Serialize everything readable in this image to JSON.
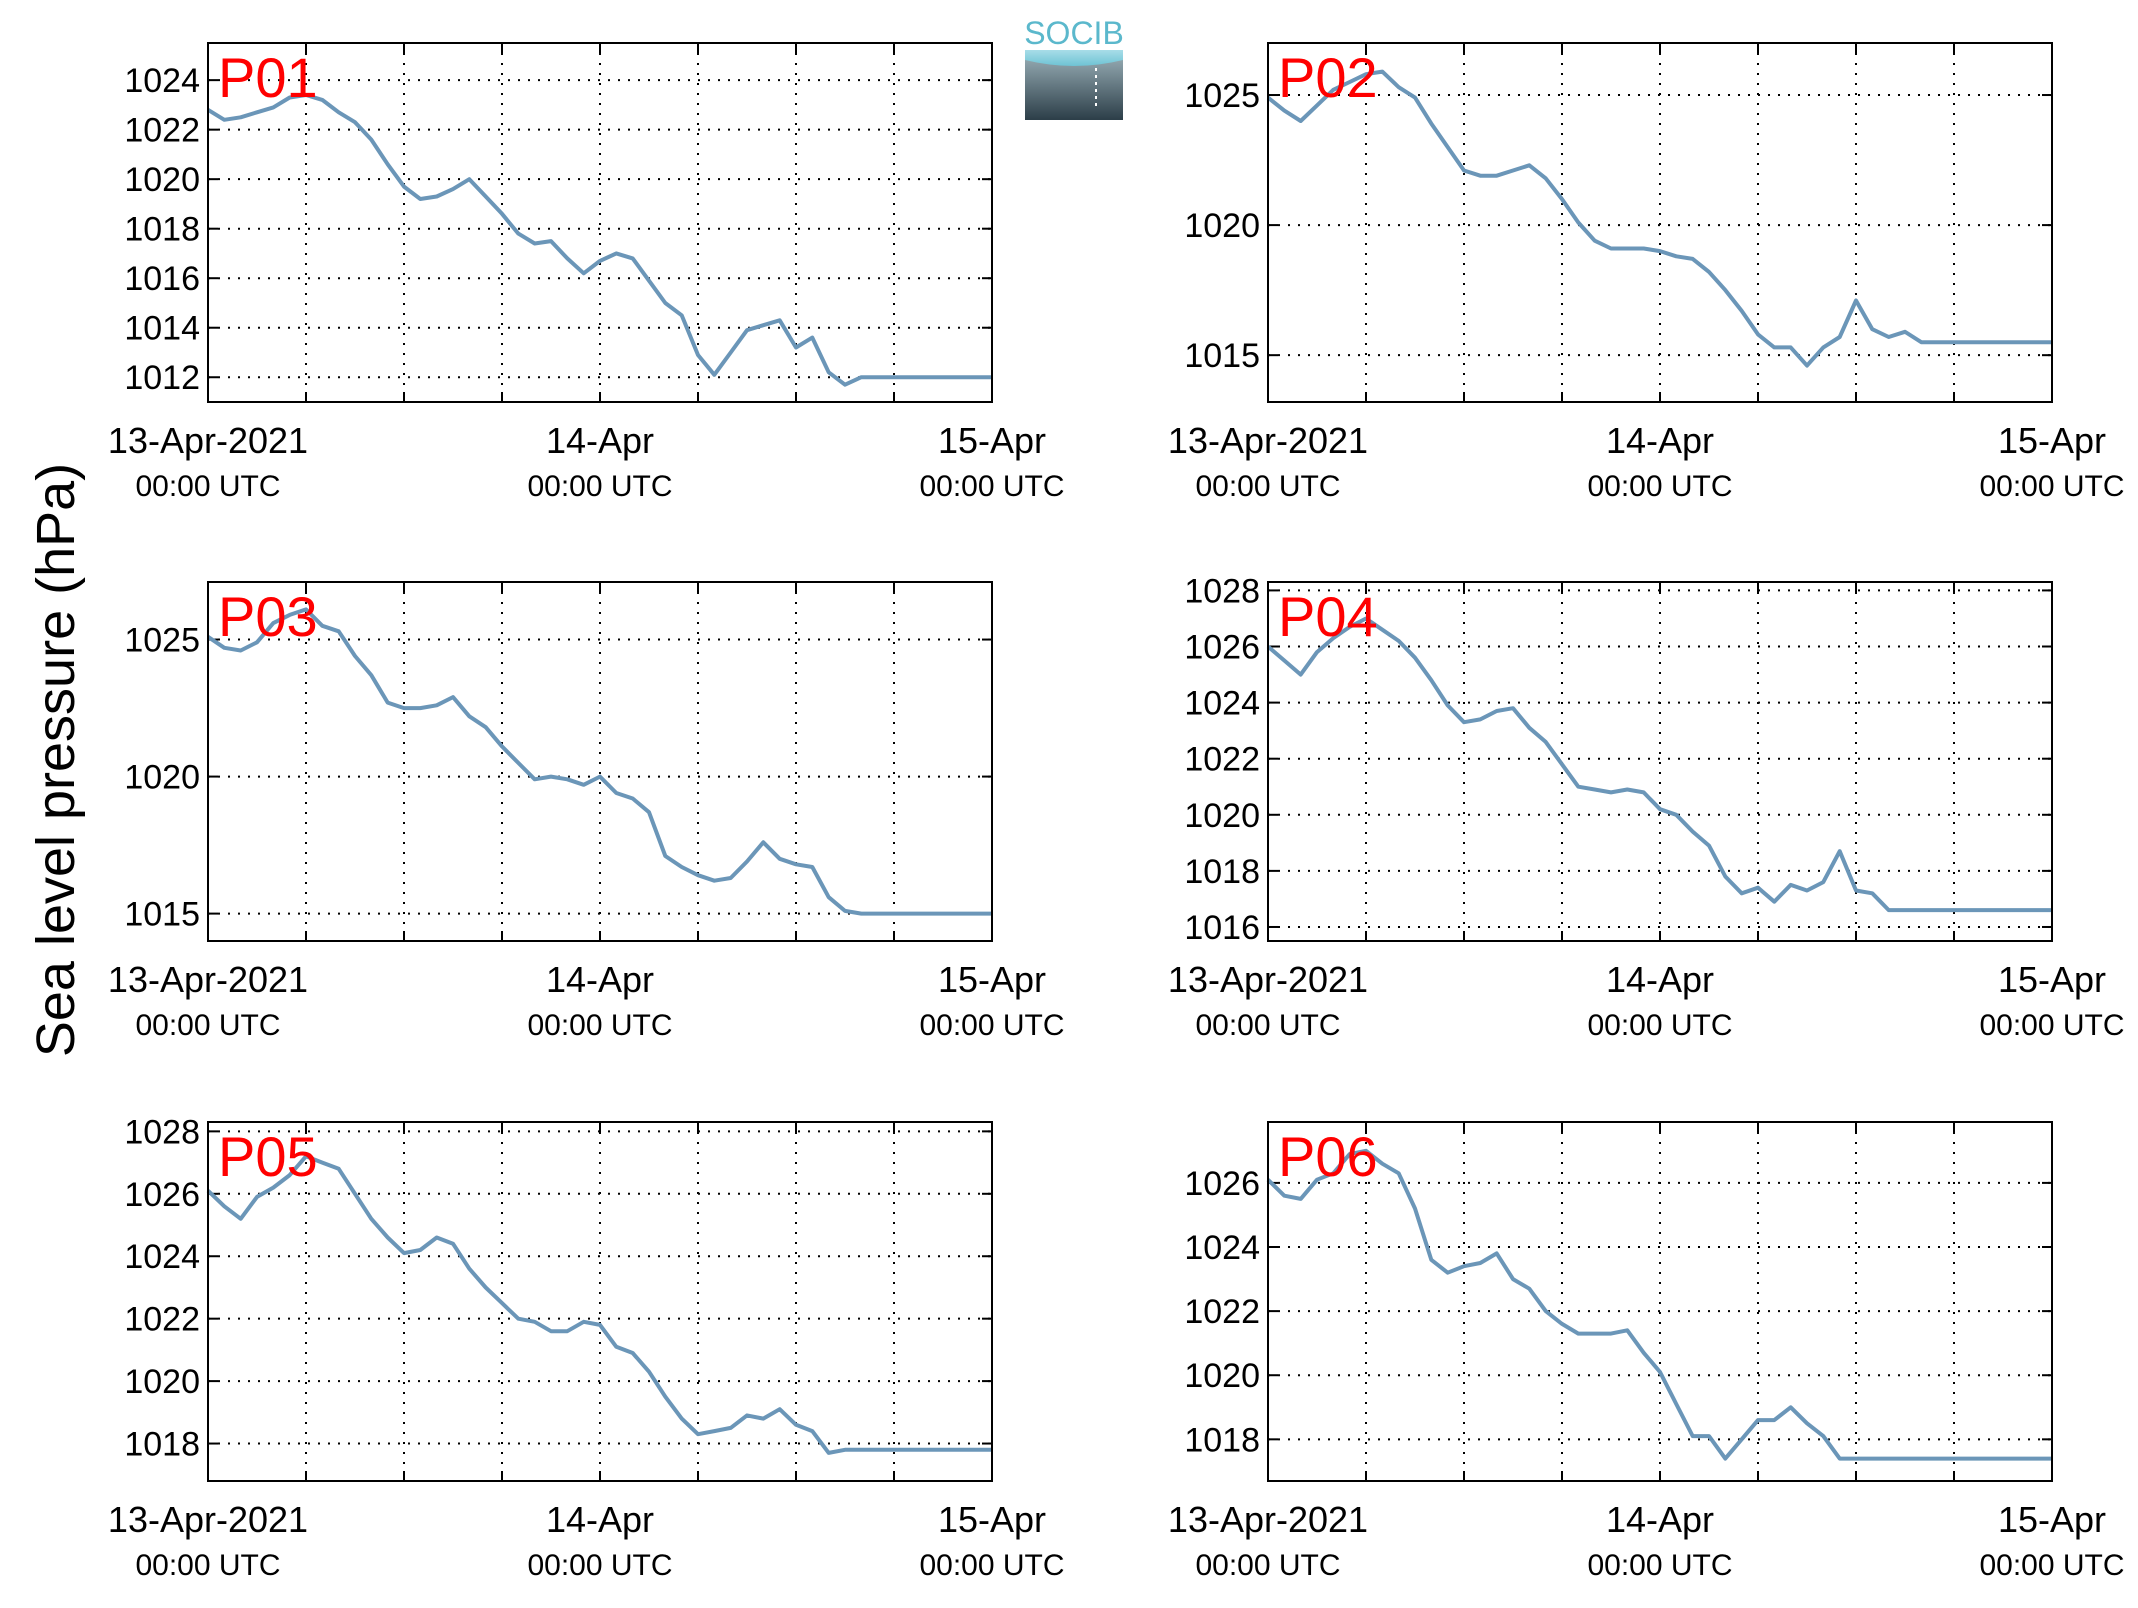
{
  "figure": {
    "ylabel": "Sea level pressure (hPa)",
    "logo": {
      "text": "SOCIB",
      "colors": {
        "text": "#5bb8cc",
        "top": "#8ec9d6",
        "bottom": "#2c3e48"
      }
    },
    "line_color": "#6b96b8",
    "station_label_color": "#ff0000"
  },
  "chart_data": [
    {
      "type": "line",
      "title": "P01",
      "x_range_hours": [
        0,
        48
      ],
      "ylim": [
        1011,
        1025.5
      ],
      "yticks": [
        1012,
        1014,
        1016,
        1018,
        1020,
        1022,
        1024
      ],
      "xticks": [
        {
          "line1": "13-Apr-2021",
          "line2": "00:00 UTC"
        },
        {
          "line1": "14-Apr",
          "line2": "00:00 UTC"
        },
        {
          "line1": "15-Apr",
          "line2": "00:00 UTC"
        }
      ],
      "series": [
        {
          "x": [
            0,
            1,
            2,
            3,
            4,
            5,
            6,
            7,
            8,
            9,
            10,
            11,
            12,
            13,
            14,
            15,
            16,
            17,
            18,
            19,
            20,
            21,
            22,
            23,
            24,
            25,
            26,
            27,
            28,
            29,
            30,
            31,
            32,
            33,
            34,
            35,
            36,
            37,
            38,
            39,
            40,
            41,
            42,
            43,
            44,
            45,
            46,
            47,
            48
          ],
          "values": [
            1022.8,
            1022.4,
            1022.5,
            1022.7,
            1022.9,
            1023.3,
            1023.4,
            1023.2,
            1022.7,
            1022.3,
            1021.6,
            1020.6,
            1019.7,
            1019.2,
            1019.3,
            1019.6,
            1020.0,
            1019.3,
            1018.6,
            1017.8,
            1017.4,
            1017.5,
            1016.8,
            1016.2,
            1016.7,
            1017.0,
            1016.8,
            1015.9,
            1015.0,
            1014.5,
            1012.9,
            1012.1,
            1013.0,
            1013.9,
            1014.1,
            1014.3,
            1013.2,
            1013.6,
            1012.2,
            1011.7,
            1012.0,
            1012.0,
            1012.0,
            1012.0,
            1012.0,
            1012.0,
            1012.0,
            1012.0,
            1012.0
          ]
        }
      ]
    },
    {
      "type": "line",
      "title": "P02",
      "x_range_hours": [
        0,
        48
      ],
      "ylim": [
        1013.2,
        1027.0
      ],
      "yticks": [
        1015,
        1020,
        1025
      ],
      "xticks": [
        {
          "line1": "13-Apr-2021",
          "line2": "00:00 UTC"
        },
        {
          "line1": "14-Apr",
          "line2": "00:00 UTC"
        },
        {
          "line1": "15-Apr",
          "line2": "00:00 UTC"
        }
      ],
      "series": [
        {
          "x": [
            0,
            1,
            2,
            3,
            4,
            5,
            6,
            7,
            8,
            9,
            10,
            11,
            12,
            13,
            14,
            15,
            16,
            17,
            18,
            19,
            20,
            21,
            22,
            23,
            24,
            25,
            26,
            27,
            28,
            29,
            30,
            31,
            32,
            33,
            34,
            35,
            36,
            37,
            38,
            39,
            40,
            41,
            42,
            43,
            44,
            45,
            46,
            47,
            48
          ],
          "values": [
            1024.9,
            1024.4,
            1024.0,
            1024.6,
            1025.2,
            1025.5,
            1025.8,
            1025.9,
            1025.3,
            1024.9,
            1023.9,
            1023.0,
            1022.1,
            1021.9,
            1021.9,
            1022.1,
            1022.3,
            1021.8,
            1021.0,
            1020.1,
            1019.4,
            1019.1,
            1019.1,
            1019.1,
            1019.0,
            1018.8,
            1018.7,
            1018.2,
            1017.5,
            1016.7,
            1015.8,
            1015.3,
            1015.3,
            1014.6,
            1015.3,
            1015.7,
            1017.1,
            1016.0,
            1015.7,
            1015.9,
            1015.5,
            1015.5,
            1015.5,
            1015.5,
            1015.5,
            1015.5,
            1015.5,
            1015.5,
            1015.5
          ]
        }
      ]
    },
    {
      "type": "line",
      "title": "P03",
      "x_range_hours": [
        0,
        48
      ],
      "ylim": [
        1014.0,
        1027.1
      ],
      "yticks": [
        1015,
        1020,
        1025
      ],
      "xticks": [
        {
          "line1": "13-Apr-2021",
          "line2": "00:00 UTC"
        },
        {
          "line1": "14-Apr",
          "line2": "00:00 UTC"
        },
        {
          "line1": "15-Apr",
          "line2": "00:00 UTC"
        }
      ],
      "series": [
        {
          "x": [
            0,
            1,
            2,
            3,
            4,
            5,
            6,
            7,
            8,
            9,
            10,
            11,
            12,
            13,
            14,
            15,
            16,
            17,
            18,
            19,
            20,
            21,
            22,
            23,
            24,
            25,
            26,
            27,
            28,
            29,
            30,
            31,
            32,
            33,
            34,
            35,
            36,
            37,
            38,
            39,
            40,
            41,
            42,
            43,
            44,
            45,
            46,
            47,
            48
          ],
          "values": [
            1025.1,
            1024.7,
            1024.6,
            1024.9,
            1025.6,
            1025.9,
            1026.1,
            1025.5,
            1025.3,
            1024.4,
            1023.7,
            1022.7,
            1022.5,
            1022.5,
            1022.6,
            1022.9,
            1022.2,
            1021.8,
            1021.1,
            1020.5,
            1019.9,
            1020.0,
            1019.9,
            1019.7,
            1020.0,
            1019.4,
            1019.2,
            1018.7,
            1017.1,
            1016.7,
            1016.4,
            1016.2,
            1016.3,
            1016.9,
            1017.6,
            1017.0,
            1016.8,
            1016.7,
            1015.6,
            1015.1,
            1015.0,
            1015.0,
            1015.0,
            1015.0,
            1015.0,
            1015.0,
            1015.0,
            1015.0,
            1015.0
          ]
        }
      ]
    },
    {
      "type": "line",
      "title": "P04",
      "x_range_hours": [
        0,
        48
      ],
      "ylim": [
        1015.5,
        1028.3
      ],
      "yticks": [
        1016,
        1018,
        1020,
        1022,
        1024,
        1026,
        1028
      ],
      "xticks": [
        {
          "line1": "13-Apr-2021",
          "line2": "00:00 UTC"
        },
        {
          "line1": "14-Apr",
          "line2": "00:00 UTC"
        },
        {
          "line1": "15-Apr",
          "line2": "00:00 UTC"
        }
      ],
      "series": [
        {
          "x": [
            0,
            1,
            2,
            3,
            4,
            5,
            6,
            7,
            8,
            9,
            10,
            11,
            12,
            13,
            14,
            15,
            16,
            17,
            18,
            19,
            20,
            21,
            22,
            23,
            24,
            25,
            26,
            27,
            28,
            29,
            30,
            31,
            32,
            33,
            34,
            35,
            36,
            37,
            38,
            39,
            40,
            41,
            42,
            43,
            44,
            45,
            46,
            47,
            48
          ],
          "values": [
            1026.0,
            1025.5,
            1025.0,
            1025.8,
            1026.3,
            1026.7,
            1027.0,
            1026.6,
            1026.2,
            1025.6,
            1024.8,
            1023.9,
            1023.3,
            1023.4,
            1023.7,
            1023.8,
            1023.1,
            1022.6,
            1021.8,
            1021.0,
            1020.9,
            1020.8,
            1020.9,
            1020.8,
            1020.2,
            1020.0,
            1019.4,
            1018.9,
            1017.8,
            1017.2,
            1017.4,
            1016.9,
            1017.5,
            1017.3,
            1017.6,
            1018.7,
            1017.3,
            1017.2,
            1016.6,
            1016.6,
            1016.6,
            1016.6,
            1016.6,
            1016.6,
            1016.6,
            1016.6,
            1016.6,
            1016.6,
            1016.6
          ]
        }
      ]
    },
    {
      "type": "line",
      "title": "P05",
      "x_range_hours": [
        0,
        48
      ],
      "ylim": [
        1016.8,
        1028.3
      ],
      "yticks": [
        1018,
        1020,
        1022,
        1024,
        1026,
        1028
      ],
      "xticks": [
        {
          "line1": "13-Apr-2021",
          "line2": "00:00 UTC"
        },
        {
          "line1": "14-Apr",
          "line2": "00:00 UTC"
        },
        {
          "line1": "15-Apr",
          "line2": "00:00 UTC"
        }
      ],
      "series": [
        {
          "x": [
            0,
            1,
            2,
            3,
            4,
            5,
            6,
            7,
            8,
            9,
            10,
            11,
            12,
            13,
            14,
            15,
            16,
            17,
            18,
            19,
            20,
            21,
            22,
            23,
            24,
            25,
            26,
            27,
            28,
            29,
            30,
            31,
            32,
            33,
            34,
            35,
            36,
            37,
            38,
            39,
            40,
            41,
            42,
            43,
            44,
            45,
            46,
            47,
            48
          ],
          "values": [
            1026.1,
            1025.6,
            1025.2,
            1025.9,
            1026.2,
            1026.6,
            1027.2,
            1027.0,
            1026.8,
            1026.0,
            1025.2,
            1024.6,
            1024.1,
            1024.2,
            1024.6,
            1024.4,
            1023.6,
            1023.0,
            1022.5,
            1022.0,
            1021.9,
            1021.6,
            1021.6,
            1021.9,
            1021.8,
            1021.1,
            1020.9,
            1020.3,
            1019.5,
            1018.8,
            1018.3,
            1018.4,
            1018.5,
            1018.9,
            1018.8,
            1019.1,
            1018.6,
            1018.4,
            1017.7,
            1017.8,
            1017.8,
            1017.8,
            1017.8,
            1017.8,
            1017.8,
            1017.8,
            1017.8,
            1017.8,
            1017.8
          ]
        }
      ]
    },
    {
      "type": "line",
      "title": "P06",
      "x_range_hours": [
        0,
        48
      ],
      "ylim": [
        1016.7,
        1027.9
      ],
      "yticks": [
        1018,
        1020,
        1022,
        1024,
        1026
      ],
      "xticks": [
        {
          "line1": "13-Apr-2021",
          "line2": "00:00 UTC"
        },
        {
          "line1": "14-Apr",
          "line2": "00:00 UTC"
        },
        {
          "line1": "15-Apr",
          "line2": "00:00 UTC"
        }
      ],
      "series": [
        {
          "x": [
            0,
            1,
            2,
            3,
            4,
            5,
            6,
            7,
            8,
            9,
            10,
            11,
            12,
            13,
            14,
            15,
            16,
            17,
            18,
            19,
            20,
            21,
            22,
            23,
            24,
            25,
            26,
            27,
            28,
            29,
            30,
            31,
            32,
            33,
            34,
            35,
            36,
            37,
            38,
            39,
            40,
            41,
            42,
            43,
            44,
            45,
            46,
            47,
            48
          ],
          "values": [
            1026.1,
            1025.6,
            1025.5,
            1026.1,
            1026.3,
            1026.9,
            1027.0,
            1026.6,
            1026.3,
            1025.2,
            1023.6,
            1023.2,
            1023.4,
            1023.5,
            1023.8,
            1023.0,
            1022.7,
            1022.0,
            1021.6,
            1021.3,
            1021.3,
            1021.3,
            1021.4,
            1020.7,
            1020.1,
            1019.1,
            1018.1,
            1018.1,
            1017.4,
            1018.0,
            1018.6,
            1018.6,
            1019.0,
            1018.5,
            1018.1,
            1017.4,
            1017.4,
            1017.4,
            1017.4,
            1017.4,
            1017.4,
            1017.4,
            1017.4,
            1017.4,
            1017.4,
            1017.4,
            1017.4,
            1017.4,
            1017.4
          ]
        }
      ]
    }
  ]
}
